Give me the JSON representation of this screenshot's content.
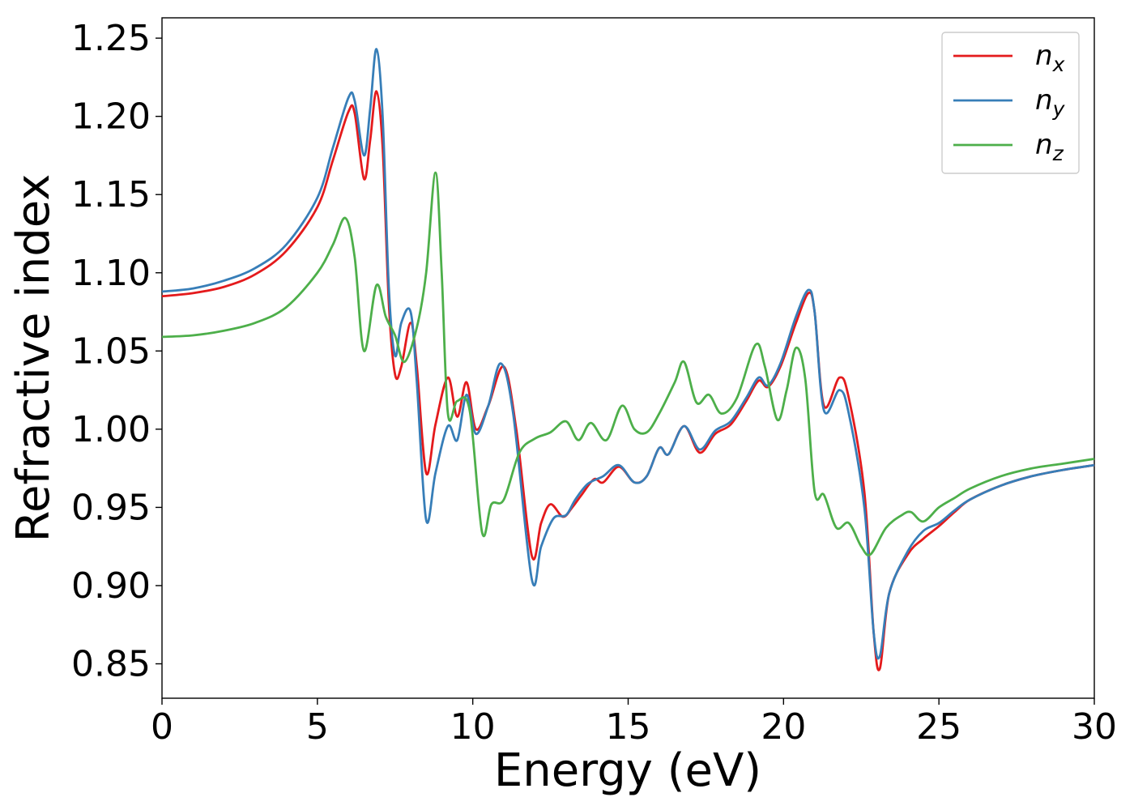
{
  "chart_data": {
    "type": "line",
    "xlabel": "Energy (eV)",
    "ylabel": "Refractive index",
    "xlim": [
      0,
      30
    ],
    "ylim": [
      0.828,
      1.263
    ],
    "xticks": [
      0,
      5,
      10,
      15,
      20,
      25,
      30
    ],
    "xtick_labels": [
      "0",
      "5",
      "10",
      "15",
      "20",
      "25",
      "30"
    ],
    "yticks": [
      0.85,
      0.9,
      0.95,
      1.0,
      1.05,
      1.1,
      1.15,
      1.2,
      1.25
    ],
    "ytick_labels": [
      "0.85",
      "0.90",
      "0.95",
      "1.00",
      "1.05",
      "1.10",
      "1.15",
      "1.20",
      "1.25"
    ],
    "grid": false,
    "legend_position": "top-right",
    "series": [
      {
        "name": "n_x",
        "legend_main": "n",
        "legend_sub": "x",
        "color": "#e41a1c",
        "points": [
          [
            0,
            1.085
          ],
          [
            1,
            1.087
          ],
          [
            2,
            1.091
          ],
          [
            3,
            1.099
          ],
          [
            4,
            1.114
          ],
          [
            5,
            1.142
          ],
          [
            5.5,
            1.172
          ],
          [
            6,
            1.203
          ],
          [
            6.2,
            1.202
          ],
          [
            6.5,
            1.16
          ],
          [
            6.7,
            1.185
          ],
          [
            6.9,
            1.216
          ],
          [
            7.1,
            1.18
          ],
          [
            7.3,
            1.08
          ],
          [
            7.5,
            1.035
          ],
          [
            7.7,
            1.04
          ],
          [
            8.0,
            1.068
          ],
          [
            8.2,
            1.04
          ],
          [
            8.5,
            0.972
          ],
          [
            8.8,
            1.003
          ],
          [
            9.2,
            1.033
          ],
          [
            9.5,
            1.008
          ],
          [
            9.8,
            1.03
          ],
          [
            10.1,
            1.0
          ],
          [
            10.5,
            1.015
          ],
          [
            11.0,
            1.04
          ],
          [
            11.4,
            1.0
          ],
          [
            11.9,
            0.919
          ],
          [
            12.2,
            0.94
          ],
          [
            12.5,
            0.952
          ],
          [
            12.9,
            0.944
          ],
          [
            13.2,
            0.95
          ],
          [
            13.5,
            0.958
          ],
          [
            13.9,
            0.968
          ],
          [
            14.2,
            0.966
          ],
          [
            14.7,
            0.976
          ],
          [
            15.2,
            0.966
          ],
          [
            15.6,
            0.97
          ],
          [
            16.0,
            0.988
          ],
          [
            16.3,
            0.984
          ],
          [
            16.8,
            1.002
          ],
          [
            17.3,
            0.985
          ],
          [
            17.8,
            0.997
          ],
          [
            18.3,
            1.003
          ],
          [
            18.8,
            1.018
          ],
          [
            19.2,
            1.031
          ],
          [
            19.5,
            1.027
          ],
          [
            19.9,
            1.04
          ],
          [
            20.4,
            1.068
          ],
          [
            20.8,
            1.087
          ],
          [
            21.0,
            1.075
          ],
          [
            21.3,
            1.015
          ],
          [
            21.8,
            1.033
          ],
          [
            22.1,
            1.02
          ],
          [
            22.6,
            0.96
          ],
          [
            22.9,
            0.87
          ],
          [
            23.1,
            0.847
          ],
          [
            23.4,
            0.895
          ],
          [
            24.0,
            0.92
          ],
          [
            24.5,
            0.93
          ],
          [
            25.0,
            0.938
          ],
          [
            25.5,
            0.947
          ],
          [
            26.0,
            0.955
          ],
          [
            27.0,
            0.964
          ],
          [
            28.0,
            0.97
          ],
          [
            29.0,
            0.974
          ],
          [
            30,
            0.977
          ]
        ]
      },
      {
        "name": "n_y",
        "legend_main": "n",
        "legend_sub": "y",
        "color": "#377eb8",
        "points": [
          [
            0,
            1.088
          ],
          [
            1,
            1.09
          ],
          [
            2,
            1.095
          ],
          [
            3,
            1.103
          ],
          [
            4,
            1.118
          ],
          [
            5,
            1.148
          ],
          [
            5.5,
            1.18
          ],
          [
            6,
            1.212
          ],
          [
            6.2,
            1.21
          ],
          [
            6.5,
            1.175
          ],
          [
            6.7,
            1.205
          ],
          [
            6.9,
            1.243
          ],
          [
            7.1,
            1.2
          ],
          [
            7.3,
            1.09
          ],
          [
            7.5,
            1.047
          ],
          [
            7.7,
            1.068
          ],
          [
            8.0,
            1.075
          ],
          [
            8.2,
            1.03
          ],
          [
            8.5,
            0.942
          ],
          [
            8.8,
            0.972
          ],
          [
            9.2,
            1.002
          ],
          [
            9.5,
            0.993
          ],
          [
            9.8,
            1.022
          ],
          [
            10.1,
            0.997
          ],
          [
            10.5,
            1.015
          ],
          [
            10.9,
            1.042
          ],
          [
            11.3,
            1.01
          ],
          [
            11.9,
            0.904
          ],
          [
            12.2,
            0.925
          ],
          [
            12.6,
            0.943
          ],
          [
            13.0,
            0.945
          ],
          [
            13.3,
            0.955
          ],
          [
            13.7,
            0.965
          ],
          [
            14.2,
            0.97
          ],
          [
            14.7,
            0.977
          ],
          [
            15.2,
            0.966
          ],
          [
            15.6,
            0.97
          ],
          [
            16.0,
            0.988
          ],
          [
            16.3,
            0.984
          ],
          [
            16.8,
            1.002
          ],
          [
            17.3,
            0.987
          ],
          [
            17.8,
            0.999
          ],
          [
            18.3,
            1.005
          ],
          [
            18.8,
            1.02
          ],
          [
            19.2,
            1.033
          ],
          [
            19.5,
            1.028
          ],
          [
            19.9,
            1.042
          ],
          [
            20.4,
            1.072
          ],
          [
            20.8,
            1.089
          ],
          [
            21.0,
            1.075
          ],
          [
            21.3,
            1.012
          ],
          [
            21.8,
            1.025
          ],
          [
            22.1,
            1.01
          ],
          [
            22.6,
            0.95
          ],
          [
            22.9,
            0.87
          ],
          [
            23.1,
            0.855
          ],
          [
            23.4,
            0.895
          ],
          [
            24.0,
            0.922
          ],
          [
            24.5,
            0.935
          ],
          [
            25.0,
            0.94
          ],
          [
            25.5,
            0.948
          ],
          [
            26.0,
            0.955
          ],
          [
            27.0,
            0.964
          ],
          [
            28.0,
            0.97
          ],
          [
            29.0,
            0.974
          ],
          [
            30,
            0.977
          ]
        ]
      },
      {
        "name": "n_z",
        "legend_main": "n",
        "legend_sub": "z",
        "color": "#4daf4a",
        "points": [
          [
            0,
            1.059
          ],
          [
            1,
            1.06
          ],
          [
            2,
            1.063
          ],
          [
            3,
            1.068
          ],
          [
            4,
            1.078
          ],
          [
            5,
            1.1
          ],
          [
            5.5,
            1.118
          ],
          [
            5.9,
            1.135
          ],
          [
            6.2,
            1.11
          ],
          [
            6.5,
            1.05
          ],
          [
            6.9,
            1.092
          ],
          [
            7.2,
            1.072
          ],
          [
            7.5,
            1.06
          ],
          [
            7.8,
            1.043
          ],
          [
            8.2,
            1.065
          ],
          [
            8.5,
            1.1
          ],
          [
            8.8,
            1.164
          ],
          [
            9.0,
            1.1
          ],
          [
            9.2,
            1.01
          ],
          [
            9.5,
            1.018
          ],
          [
            9.9,
            1.012
          ],
          [
            10.3,
            0.934
          ],
          [
            10.6,
            0.952
          ],
          [
            11.0,
            0.955
          ],
          [
            11.5,
            0.985
          ],
          [
            12.0,
            0.994
          ],
          [
            12.5,
            0.998
          ],
          [
            13.0,
            1.005
          ],
          [
            13.4,
            0.993
          ],
          [
            13.8,
            1.004
          ],
          [
            14.3,
            0.993
          ],
          [
            14.8,
            1.015
          ],
          [
            15.2,
            1.0
          ],
          [
            15.6,
            0.998
          ],
          [
            16.0,
            1.01
          ],
          [
            16.5,
            1.03
          ],
          [
            16.8,
            1.043
          ],
          [
            17.2,
            1.017
          ],
          [
            17.6,
            1.022
          ],
          [
            18.0,
            1.01
          ],
          [
            18.5,
            1.02
          ],
          [
            19.1,
            1.054
          ],
          [
            19.4,
            1.04
          ],
          [
            19.8,
            1.006
          ],
          [
            20.1,
            1.025
          ],
          [
            20.4,
            1.052
          ],
          [
            20.7,
            1.032
          ],
          [
            21.0,
            0.96
          ],
          [
            21.3,
            0.958
          ],
          [
            21.7,
            0.937
          ],
          [
            22.1,
            0.94
          ],
          [
            22.5,
            0.925
          ],
          [
            22.8,
            0.92
          ],
          [
            23.3,
            0.937
          ],
          [
            23.8,
            0.945
          ],
          [
            24.1,
            0.947
          ],
          [
            24.5,
            0.941
          ],
          [
            25.0,
            0.95
          ],
          [
            25.5,
            0.956
          ],
          [
            26.0,
            0.962
          ],
          [
            27.0,
            0.97
          ],
          [
            28.0,
            0.975
          ],
          [
            29.0,
            0.978
          ],
          [
            30,
            0.981
          ]
        ]
      }
    ]
  }
}
